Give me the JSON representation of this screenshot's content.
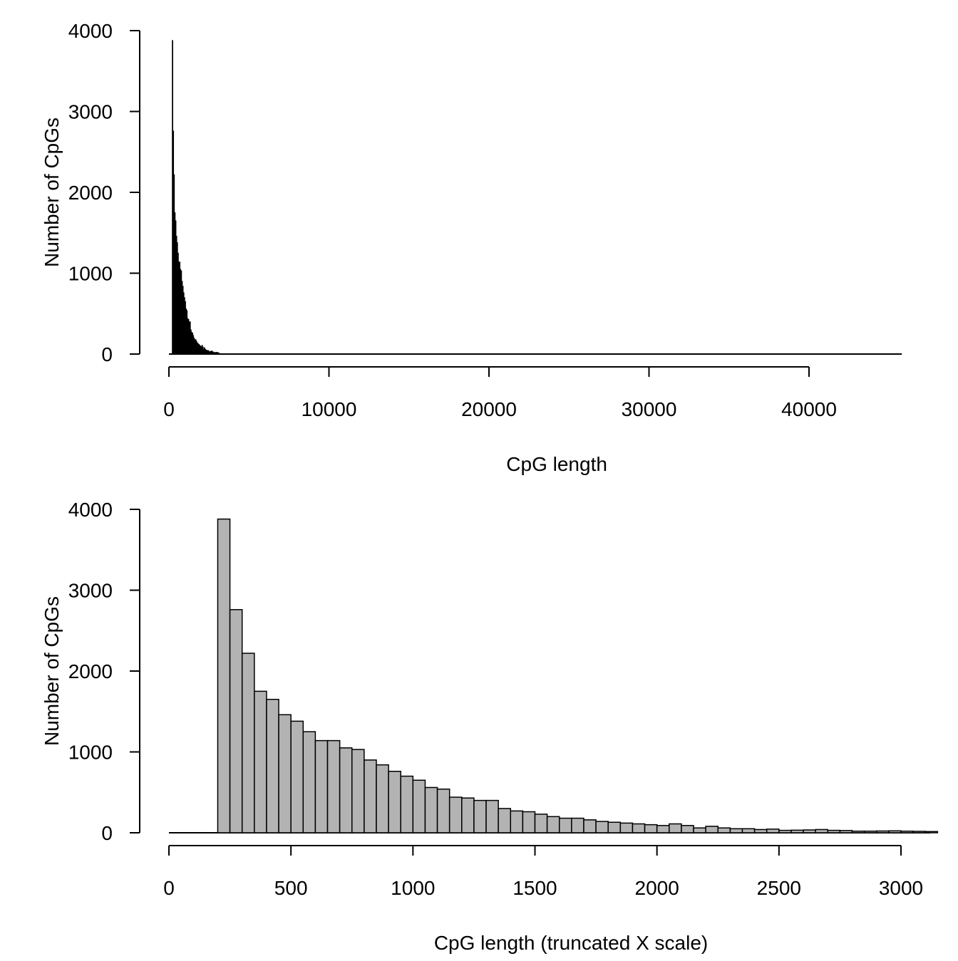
{
  "chart_data": [
    {
      "type": "bar",
      "title": "",
      "xlabel": "CpG length",
      "ylabel": "Number of CpGs",
      "xlim": [
        0,
        45800
      ],
      "ylim": [
        0,
        4000
      ],
      "xticks": [
        0,
        10000,
        20000,
        30000,
        40000
      ],
      "xtick_labels": [
        "0",
        "10000",
        "20000",
        "30000",
        "40000"
      ],
      "yticks": [
        0,
        1000,
        2000,
        3000,
        4000
      ],
      "ytick_labels": [
        "0",
        "1000",
        "2000",
        "3000",
        "4000"
      ],
      "bar_fill": "#000000",
      "bin_width": 50,
      "bin_start": 200,
      "tail_end": 45800,
      "values": [
        3880,
        2760,
        2220,
        1750,
        1650,
        1460,
        1380,
        1250,
        1140,
        1140,
        1050,
        1030,
        900,
        840,
        760,
        700,
        650,
        560,
        540,
        440,
        430,
        400,
        400,
        300,
        270,
        260,
        230,
        200,
        180,
        180,
        160,
        140,
        130,
        120,
        110,
        100,
        90,
        110,
        90,
        60,
        80,
        60,
        50,
        50,
        40,
        45,
        30,
        32,
        35,
        40,
        30,
        28,
        20,
        20,
        22,
        24,
        20,
        18,
        15
      ],
      "grid": false
    },
    {
      "type": "bar",
      "title": "",
      "xlabel": "CpG length (truncated X scale)",
      "ylabel": "Number of CpGs",
      "xlim": [
        0,
        3120
      ],
      "ylim": [
        0,
        4000
      ],
      "xticks": [
        0,
        500,
        1000,
        1500,
        2000,
        2500,
        3000
      ],
      "xtick_labels": [
        "0",
        "500",
        "1000",
        "1500",
        "2000",
        "2500",
        "3000"
      ],
      "yticks": [
        0,
        1000,
        2000,
        3000,
        4000
      ],
      "ytick_labels": [
        "0",
        "1000",
        "2000",
        "3000",
        "4000"
      ],
      "bar_fill": "#b3b3b3",
      "bin_width": 50,
      "bin_start": 200,
      "values": [
        3880,
        2760,
        2220,
        1750,
        1650,
        1460,
        1380,
        1250,
        1140,
        1140,
        1050,
        1030,
        900,
        840,
        760,
        700,
        650,
        560,
        540,
        440,
        430,
        400,
        400,
        300,
        270,
        260,
        230,
        200,
        180,
        180,
        160,
        140,
        130,
        120,
        110,
        100,
        90,
        110,
        90,
        60,
        80,
        60,
        50,
        50,
        40,
        45,
        30,
        32,
        35,
        40,
        30,
        28,
        20,
        20,
        22,
        24,
        20,
        18,
        15
      ],
      "grid": false
    }
  ]
}
